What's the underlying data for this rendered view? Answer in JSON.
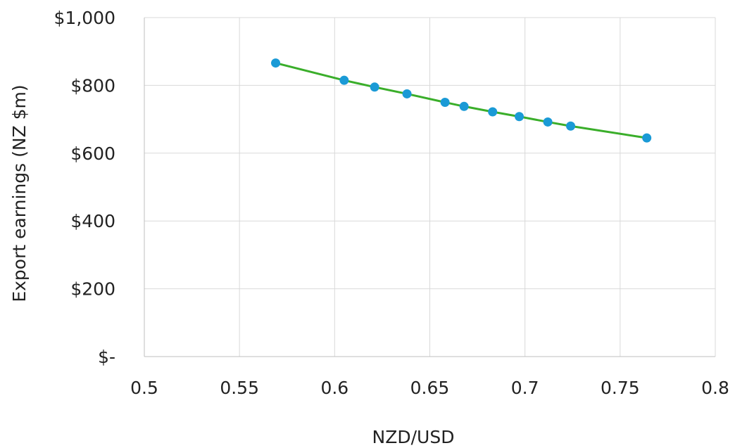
{
  "chart_data": {
    "type": "scatter",
    "title": "",
    "xlabel": "NZD/USD",
    "ylabel": "Export earnings (NZ $m)",
    "xlim": [
      0.5,
      0.8
    ],
    "ylim": [
      0,
      1000
    ],
    "x_ticks": [
      0.5,
      0.55,
      0.6,
      0.65,
      0.7,
      0.75,
      0.8
    ],
    "x_tick_labels": [
      "0.5",
      "0.55",
      "0.6",
      "0.65",
      "0.7",
      "0.75",
      "0.8"
    ],
    "y_ticks": [
      0,
      200,
      400,
      600,
      800,
      1000
    ],
    "y_tick_labels": [
      "$-",
      "$200",
      "$400",
      "$600",
      "$800",
      "$1,000"
    ],
    "grid": true,
    "legend": "none",
    "series": [
      {
        "marker": "circle",
        "line": "smooth",
        "x": [
          0.569,
          0.605,
          0.621,
          0.638,
          0.658,
          0.668,
          0.683,
          0.697,
          0.712,
          0.724,
          0.764
        ],
        "y": [
          866,
          815,
          795,
          775,
          750,
          738,
          722,
          708,
          692,
          680,
          645
        ]
      }
    ],
    "colors": {
      "line": "#3aae2a",
      "marker": "#1a9ad6",
      "grid": "#d9d9d9",
      "axis": "#bfbfbf"
    }
  }
}
